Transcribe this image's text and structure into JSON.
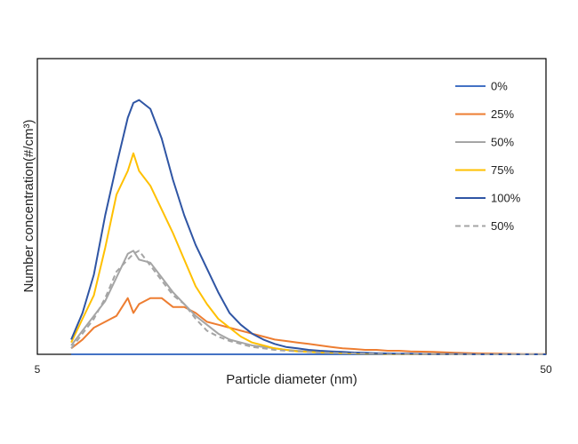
{
  "chart_data": {
    "type": "line",
    "title": "",
    "xlabel": "Particle diameter (nm)",
    "ylabel": "Number concentration(#/cm³)",
    "x_tick_labels": [
      "5",
      "50"
    ],
    "xlim": [
      5,
      50
    ],
    "ylim": [
      0,
      100
    ],
    "y_tick_labels_visible": false,
    "grid": false,
    "legend_position": "top-right",
    "x": [
      8,
      9,
      10,
      11,
      12,
      13,
      13.5,
      14,
      15,
      16,
      17,
      18,
      19,
      20,
      21,
      22,
      23,
      24,
      25,
      26,
      27,
      28,
      29,
      30,
      31,
      32,
      33,
      34,
      35,
      36,
      37,
      38,
      40,
      42,
      44,
      46,
      48,
      50
    ],
    "series": [
      {
        "name": "0%",
        "color": "#4472C4",
        "dash": false,
        "values": [
          0,
          0,
          0,
          0,
          0,
          0,
          0,
          0,
          0,
          0,
          0,
          0,
          0,
          0,
          0,
          0,
          0,
          0,
          0,
          0,
          0,
          0,
          0,
          0,
          0,
          0,
          0,
          0,
          0,
          0,
          0,
          0,
          0,
          0,
          0,
          0,
          0,
          0
        ]
      },
      {
        "name": "25%",
        "color": "#ED7D31",
        "dash": false,
        "values": [
          2,
          5,
          9,
          11,
          13,
          19,
          14,
          17,
          19,
          19,
          16,
          16,
          14,
          11,
          10,
          9,
          8,
          7,
          6,
          5,
          4.5,
          4,
          3.5,
          3,
          2.5,
          2,
          1.8,
          1.5,
          1.5,
          1.2,
          1.2,
          1,
          0.8,
          0.5,
          0.3,
          0.2,
          0.1,
          0.1
        ]
      },
      {
        "name": "50%",
        "color": "#A5A5A5",
        "dash": false,
        "values": [
          3,
          8,
          13,
          18,
          26,
          34,
          35,
          32,
          31,
          26,
          21,
          17,
          13,
          10,
          7,
          5,
          4,
          3,
          2.5,
          2,
          1.5,
          1.2,
          1,
          0.8,
          0.6,
          0.5,
          0.4,
          0.3,
          0.2,
          0.2,
          0.1,
          0.1,
          0.1,
          0.1,
          0,
          0,
          0,
          0
        ]
      },
      {
        "name": "75%",
        "color": "#FFC000",
        "dash": false,
        "values": [
          4,
          12,
          20,
          36,
          54,
          62,
          68,
          62,
          57,
          49,
          41,
          32,
          23,
          17,
          12,
          9,
          6,
          4,
          3,
          2,
          1.5,
          1,
          0.8,
          0.6,
          0.5,
          0.4,
          0.3,
          0.2,
          0.2,
          0.1,
          0.1,
          0.1,
          0.1,
          0,
          0,
          0,
          0,
          0
        ]
      },
      {
        "name": "100%",
        "color": "#2F55A4",
        "dash": false,
        "values": [
          5,
          14,
          27,
          47,
          64,
          80,
          85,
          86,
          83,
          73,
          59,
          47,
          37,
          29,
          21,
          14,
          10,
          7,
          5,
          3.5,
          2.5,
          2,
          1.5,
          1.2,
          1,
          0.8,
          0.6,
          0.5,
          0.4,
          0.3,
          0.2,
          0.2,
          0.1,
          0.1,
          0,
          0,
          0,
          0
        ]
      },
      {
        "name": "50%",
        "color": "#A5A5A5",
        "dash": true,
        "values": [
          2,
          7,
          12,
          19,
          28,
          32,
          34,
          35,
          30,
          25,
          20,
          17,
          12,
          8,
          6,
          4.5,
          3.5,
          2.5,
          2,
          1.5,
          1.2,
          1,
          0.8,
          0.6,
          0.5,
          0.4,
          0.3,
          0.2,
          0.2,
          0.1,
          0.1,
          0.1,
          0.1,
          0,
          0,
          0,
          0,
          0
        ]
      }
    ]
  }
}
